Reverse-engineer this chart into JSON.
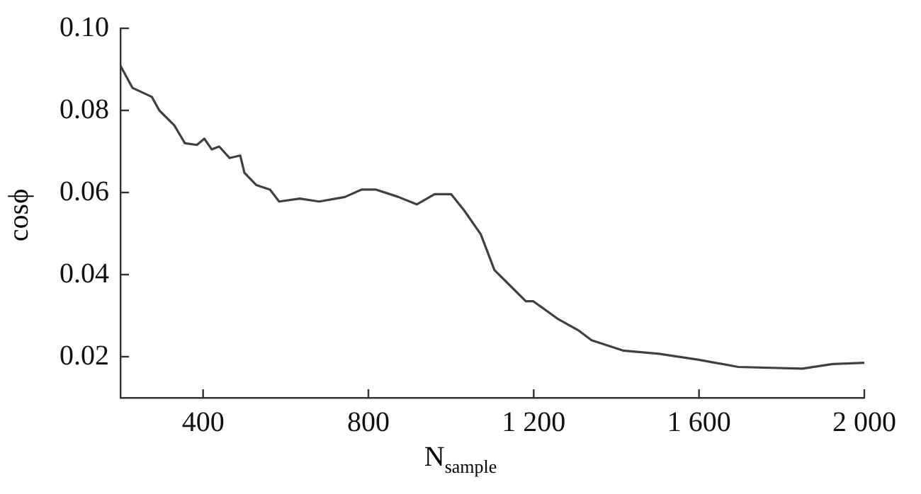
{
  "chart_data": {
    "type": "line",
    "xlabel": "N$_{sample}$",
    "ylabel": "cosϕ",
    "color": "#404040",
    "grid": false,
    "marker": "none",
    "line_style": "solid",
    "xlim": [
      200,
      2000
    ],
    "ylim": [
      0.01,
      0.1
    ],
    "xticks": [
      400,
      800,
      {
        "value": 1200,
        "label": "1 200"
      },
      {
        "value": 1600,
        "label": "1 600"
      },
      {
        "value": 2000,
        "label": "2 000"
      }
    ],
    "yticks": [
      0.02,
      0.04,
      0.06,
      0.08,
      {
        "value": 0.1,
        "label": "0.10"
      }
    ],
    "x": [
      200,
      229,
      276,
      294,
      330,
      356,
      385,
      403,
      421,
      439,
      464,
      490,
      500,
      529,
      562,
      584,
      634,
      681,
      743,
      783,
      819,
      873,
      917,
      960,
      1000,
      1032,
      1072,
      1105,
      1141,
      1181,
      1199,
      1260,
      1307,
      1340,
      1416,
      1503,
      1597,
      1695,
      1850,
      1923,
      2000
    ],
    "values": [
      0.0909,
      0.0855,
      0.0833,
      0.08,
      0.0764,
      0.072,
      0.0716,
      0.0731,
      0.0705,
      0.0712,
      0.0684,
      0.069,
      0.0648,
      0.0618,
      0.0607,
      0.0578,
      0.0585,
      0.0578,
      0.0589,
      0.0607,
      0.0607,
      0.0589,
      0.0571,
      0.0596,
      0.0596,
      0.0556,
      0.0498,
      0.0411,
      0.0375,
      0.0335,
      0.0335,
      0.0291,
      0.0265,
      0.024,
      0.0215,
      0.0207,
      0.0193,
      0.0175,
      0.0171,
      0.0182,
      0.0185
    ]
  }
}
